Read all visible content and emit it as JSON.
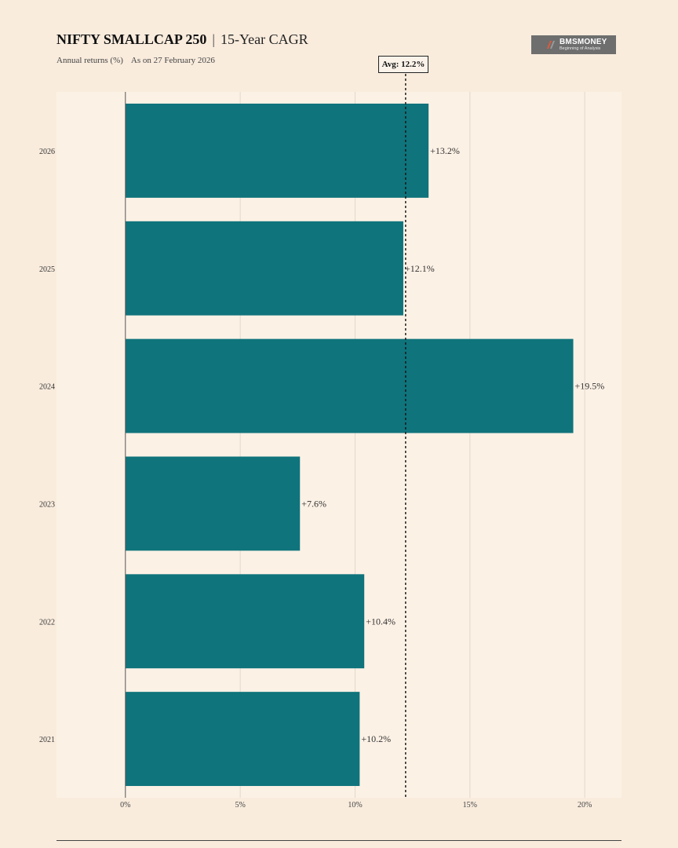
{
  "header": {
    "title": "NIFTY SMALLCAP 250",
    "separator": "|",
    "title_suffix": "15-Year CAGR",
    "subtitle_metric": "Annual returns (%)",
    "subtitle_date": "As on 27 February 2026"
  },
  "logo": {
    "name": "BMSMONEY",
    "tagline": "Beginning of Analysis",
    "icon": "bmsmoney-logo-icon"
  },
  "average_label": "Avg: 12.2%",
  "colors": {
    "background": "#f9ecdd",
    "plot_background": "#fcf1e5",
    "bar": "#0f747c",
    "grid": "#e3d8cb",
    "axis": "#555555",
    "logo_background": "#6e6e6e",
    "logo_accent": "#e05a3a"
  },
  "chart_data": {
    "type": "bar",
    "orientation": "horizontal",
    "categories": [
      "2026",
      "2025",
      "2024",
      "2023",
      "2022",
      "2021"
    ],
    "values": [
      13.2,
      12.1,
      19.5,
      7.6,
      10.4,
      10.2
    ],
    "value_labels": [
      "+13.2%",
      "+12.1%",
      "+19.5%",
      "+7.6%",
      "+10.4%",
      "+10.2%"
    ],
    "xlim": [
      -3,
      21.6
    ],
    "x_ticks": [
      0,
      5,
      10,
      15,
      20
    ],
    "x_tick_labels": [
      "0%",
      "5%",
      "10%",
      "15%",
      "20%"
    ],
    "average": 12.2,
    "grid": "vertical",
    "xlabel": "",
    "ylabel": ""
  }
}
